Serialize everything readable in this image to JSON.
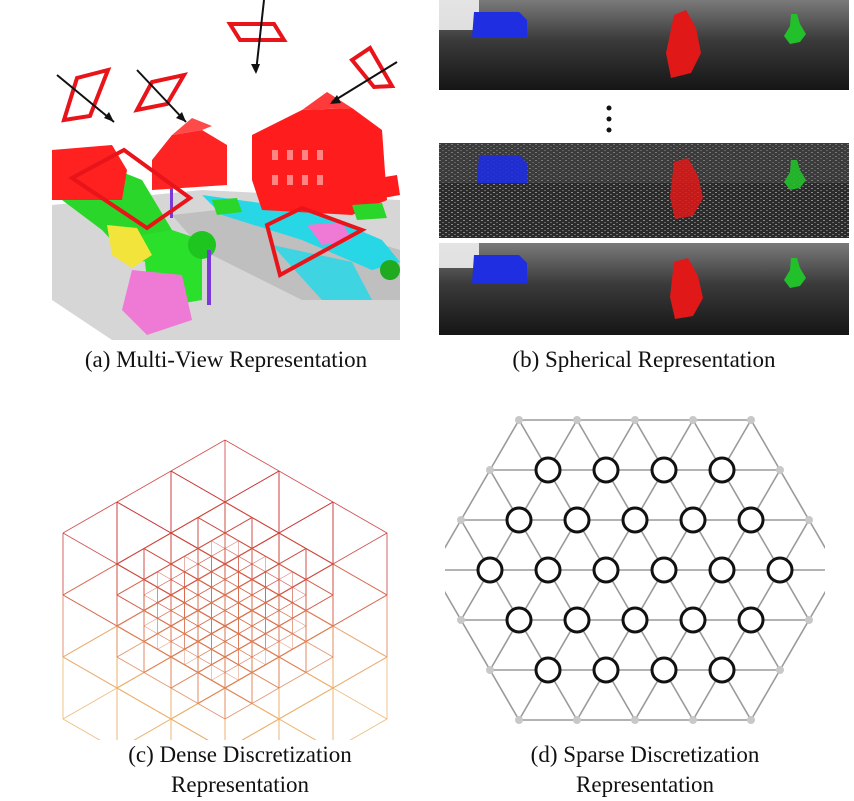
{
  "panels": {
    "a": {
      "caption": "(a) Multi-View Representation"
    },
    "b": {
      "caption": "(b) Spherical Representation"
    },
    "c": {
      "caption_line1": "(c) Dense Discretization",
      "caption_line2": "Representation"
    },
    "d": {
      "caption_line1": "(d) Sparse Discretization",
      "caption_line2": "Representation"
    }
  },
  "colors": {
    "view_plane": "#e8141a",
    "car": "#1f2ee0",
    "cyclist": "#e01818",
    "pedestrian": "#22c02a",
    "range_bg": "#2a2a2a",
    "lattice_edge": "#9a9a9a",
    "lattice_node": "#c8c8c8",
    "active_site": "#111111",
    "voxel_hot": "#c0162a",
    "voxel_cold": "#f5d27a"
  }
}
